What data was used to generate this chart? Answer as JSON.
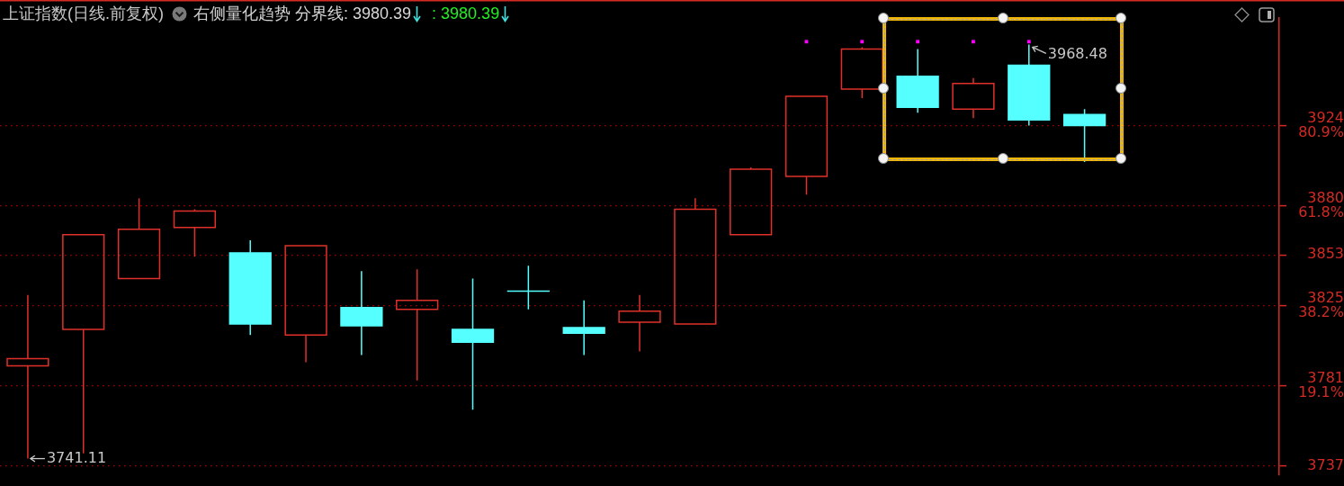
{
  "chart_data": {
    "type": "candlestick",
    "title": "上证指数(日线.前复权)",
    "subtitle": "右侧量化趋势",
    "annotations": [
      "分界线: 3980.39",
      ": 3980.39",
      "3741.11",
      "3968.48"
    ],
    "categories": [
      null,
      null,
      null,
      null,
      null,
      null,
      null,
      null,
      null,
      null,
      null,
      null,
      null,
      null,
      null,
      null,
      null,
      null,
      null,
      null,
      null,
      null,
      null
    ],
    "ohlc": [
      [
        3792,
        3831,
        3741.11,
        3796
      ],
      [
        3812,
        3864,
        3744,
        3864
      ],
      [
        3840,
        3884,
        3840,
        3867
      ],
      [
        3868,
        3878,
        3852,
        3877
      ],
      [
        3854,
        3861,
        3809,
        3815
      ],
      [
        3809,
        3858,
        3794,
        3858
      ],
      [
        3824,
        3844,
        3798,
        3814
      ],
      [
        3823,
        3845,
        3784,
        3828
      ],
      [
        3812,
        3840,
        3768,
        3805
      ],
      [
        3833,
        3847,
        3823,
        3833
      ],
      [
        3813,
        3828,
        3798,
        3810
      ],
      [
        3816,
        3831,
        3800,
        3822
      ],
      [
        3815,
        3884,
        3815,
        3878
      ],
      [
        3864,
        3901,
        3864,
        3900
      ],
      [
        3896,
        3940,
        3886,
        3940
      ],
      [
        3944,
        3967,
        3939,
        3966
      ],
      [
        3951,
        3966,
        3931,
        3934
      ],
      [
        3933,
        3950,
        3928,
        3947
      ],
      [
        3957,
        3968.48,
        3924,
        3927
      ],
      [
        3930,
        3933,
        3904,
        3924
      ],
      null,
      null,
      null
    ],
    "colors": [
      "#e0302a",
      "#e0302a",
      "#e0302a",
      "#e0302a",
      "#55ffff",
      "#e0302a",
      "#55ffff",
      "#e0302a",
      "#55ffff",
      "#55ffff",
      "#55ffff",
      "#e0302a",
      "#e0302a",
      "#e0302a",
      "#e0302a",
      "#e0302a",
      "#55ffff",
      "#e0302a",
      "#55ffff",
      "#55ffff",
      null,
      null,
      null
    ],
    "series": [
      {
        "type": "scatter",
        "color": "#ff00ff",
        "marker": "square",
        "values": [
          null,
          null,
          null,
          null,
          null,
          null,
          null,
          null,
          null,
          null,
          null,
          null,
          null,
          null,
          3970,
          3970,
          3970,
          3970,
          3970,
          null,
          null,
          null,
          null
        ]
      }
    ],
    "ylim": [
      3732,
      3983
    ],
    "yticks": [
      3737,
      {
        "value": 3781,
        "label": "3781\n19.1%"
      },
      {
        "value": 3825,
        "label": "3825\n38.2%"
      },
      3853,
      {
        "value": 3880,
        "label": "3880\n61.8%"
      },
      {
        "value": 3924,
        "label": "3924\n80.9%"
      }
    ],
    "grid": "y",
    "tick_labels": "y"
  }
}
